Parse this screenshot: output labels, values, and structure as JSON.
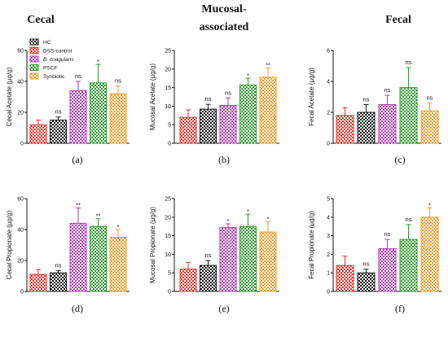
{
  "titles": {
    "cecal": "Cecal",
    "mucosal_line1": "Mucosal-",
    "mucosal_line2": "associated",
    "fecal": "Fecal"
  },
  "legend": [
    {
      "label": "HC",
      "italic": false,
      "color": "#1a1a1a"
    },
    {
      "label": "DSS-control",
      "italic": false,
      "color": "#e8322a"
    },
    {
      "label": "B. coagulans",
      "italic": true,
      "color": "#b23bb5"
    },
    {
      "label": "PSCF",
      "italic": false,
      "color": "#2c9a2c"
    },
    {
      "label": "Synbiotic",
      "italic": false,
      "color": "#f39a2a"
    }
  ],
  "chart_data": [
    {
      "panel": "(a)",
      "type": "bar",
      "ylabel": "Cecal Acetate (µg/g)",
      "ylim": [
        0,
        60
      ],
      "yticks": [
        0,
        20,
        40,
        60
      ],
      "categories": [
        "DSS-control",
        "HC",
        "B. coagulans",
        "PSCF",
        "Synbiotic"
      ],
      "colors": [
        "#e8322a",
        "#1a1a1a",
        "#b23bb5",
        "#2c9a2c",
        "#f39a2a"
      ],
      "values": [
        12,
        15,
        34,
        39,
        32
      ],
      "errors": [
        3,
        2,
        6,
        12,
        5
      ],
      "annotations": [
        "",
        "ns",
        "ns",
        "*",
        "ns"
      ]
    },
    {
      "panel": "(b)",
      "type": "bar",
      "ylabel": "Mucosal Acetate (µg/g)",
      "ylim": [
        0,
        25
      ],
      "yticks": [
        0,
        5,
        10,
        15,
        20,
        25
      ],
      "categories": [
        "DSS-control",
        "HC",
        "B. coagulans",
        "PSCF",
        "Synbiotic"
      ],
      "colors": [
        "#e8322a",
        "#1a1a1a",
        "#b23bb5",
        "#2c9a2c",
        "#f39a2a"
      ],
      "values": [
        7,
        9.2,
        10.2,
        15.7,
        17.8
      ],
      "errors": [
        2,
        1.3,
        2,
        1.8,
        2.5
      ],
      "annotations": [
        "",
        "ns",
        "ns",
        "*",
        "**"
      ]
    },
    {
      "panel": "(c)",
      "type": "bar",
      "ylabel": "Fecal Acetate (µg/g)",
      "ylim": [
        0,
        6
      ],
      "yticks": [
        0,
        2,
        4,
        6
      ],
      "categories": [
        "DSS-control",
        "HC",
        "B. coagulans",
        "PSCF",
        "Synbiotic"
      ],
      "colors": [
        "#e8322a",
        "#1a1a1a",
        "#b23bb5",
        "#2c9a2c",
        "#f39a2a"
      ],
      "values": [
        1.8,
        2.0,
        2.5,
        3.6,
        2.1
      ],
      "errors": [
        0.5,
        0.5,
        0.6,
        1.3,
        0.5
      ],
      "annotations": [
        "",
        "ns",
        "ns",
        "ns",
        "ns"
      ]
    },
    {
      "panel": "(d)",
      "type": "bar",
      "ylabel": "Cecal Propionate (µg/g)",
      "ylim": [
        0,
        60
      ],
      "yticks": [
        0,
        20,
        40,
        60
      ],
      "categories": [
        "DSS-control",
        "HC",
        "B. coagulans",
        "PSCF",
        "Synbiotic"
      ],
      "colors": [
        "#e8322a",
        "#1a1a1a",
        "#b23bb5",
        "#2c9a2c",
        "#f39a2a"
      ],
      "values": [
        11,
        12,
        44,
        42,
        35
      ],
      "errors": [
        3,
        1.5,
        10,
        5,
        5
      ],
      "annotations": [
        "",
        "ns",
        "**",
        "**",
        "*"
      ]
    },
    {
      "panel": "(e)",
      "type": "bar",
      "ylabel": "Mucosal Propionate (µg/g)",
      "ylim": [
        0,
        25
      ],
      "yticks": [
        0,
        5,
        10,
        15,
        20,
        25
      ],
      "categories": [
        "DSS-control",
        "HC",
        "B. coagulans",
        "PSCF",
        "Synbiotic"
      ],
      "colors": [
        "#e8322a",
        "#1a1a1a",
        "#b23bb5",
        "#2c9a2c",
        "#f39a2a"
      ],
      "values": [
        6,
        7,
        17.2,
        17.5,
        16
      ],
      "errors": [
        1.8,
        1.3,
        1,
        3.3,
        2.8
      ],
      "annotations": [
        "",
        "ns",
        "*",
        "*",
        "*"
      ]
    },
    {
      "panel": "(f)",
      "type": "bar",
      "ylabel": "Fecal Propionate (µg/g)",
      "ylim": [
        0,
        5
      ],
      "yticks": [
        0,
        1,
        2,
        3,
        4,
        5
      ],
      "categories": [
        "DSS-control",
        "HC",
        "B. coagulans",
        "PSCF",
        "Synbiotic"
      ],
      "colors": [
        "#e8322a",
        "#1a1a1a",
        "#b23bb5",
        "#2c9a2c",
        "#f39a2a"
      ],
      "values": [
        1.4,
        1.0,
        2.3,
        2.8,
        4.0
      ],
      "errors": [
        0.5,
        0.2,
        0.5,
        0.8,
        0.5
      ],
      "annotations": [
        "",
        "ns",
        "ns",
        "ns",
        "*"
      ]
    }
  ]
}
